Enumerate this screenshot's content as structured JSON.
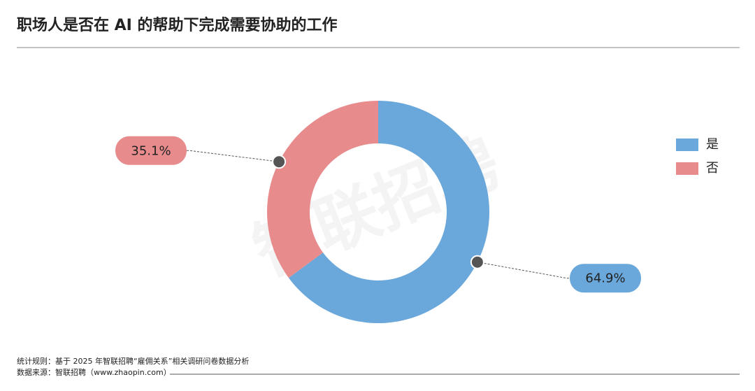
{
  "chart_data": {
    "type": "donut",
    "title": "职场人是否在 AI 的帮助下完成需要协助的工作",
    "categories": [
      "是",
      "否"
    ],
    "values": [
      64.9,
      35.1
    ],
    "value_labels": [
      "64.9%",
      "35.1%"
    ],
    "colors": [
      "#6aa7da",
      "#e88b8d"
    ],
    "legend": "right",
    "watermark": "智联招聘",
    "footnotes": [
      "统计规则：基于 2025 年智联招聘“雇佣关系”相关调研问卷数据分析",
      "数据来源：智联招聘（www.zhaopin.com）"
    ]
  }
}
